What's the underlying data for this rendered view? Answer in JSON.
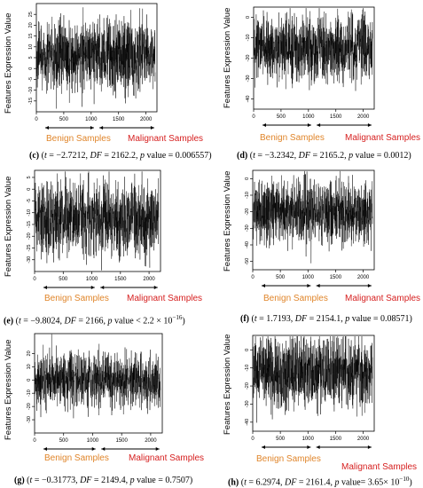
{
  "colors": {
    "benign": "#E0852A",
    "malignant": "#D62020",
    "series": "#000000"
  },
  "panels": [
    {
      "id": "c",
      "caption_letter": "(c)",
      "t": "−2.7212",
      "df": "2162.2",
      "p": "0.006557",
      "p_op": "="
    },
    {
      "id": "d",
      "caption_letter": "(d)",
      "t": "−3.2342",
      "df": "2165.2",
      "p": "0.0012",
      "p_op": "="
    },
    {
      "id": "e",
      "caption_letter": "(e)",
      "t": "−9.8024",
      "df": "2166",
      "p": "2.2 × 10",
      "p_exp": "−16",
      "p_op": "<"
    },
    {
      "id": "f",
      "caption_letter": "(f)",
      "t": "1.7193",
      "df": "2154.1",
      "p": "0.08571",
      "p_op": "="
    },
    {
      "id": "g",
      "caption_letter": "(g)",
      "t": "−0.31773",
      "df": "2149.4",
      "p": "0.7507",
      "p_op": "="
    },
    {
      "id": "h",
      "caption_letter": "(h)",
      "t": "6.2974",
      "df": "2161.4",
      "p": "3.65× 10",
      "p_exp": "−10",
      "p_op": "="
    }
  ],
  "labels": {
    "y_axis": "Features Expression Value",
    "benign": "Benign Samples",
    "malignant": "Malignant Samples",
    "t_sym": "t",
    "df_sym": "DF",
    "p_sym": "p",
    "p_word": "value"
  },
  "chart_data": [
    {
      "panel": "c",
      "type": "line",
      "n_points": 2168,
      "x_ticks": [
        0,
        500,
        1000,
        1500,
        2000
      ],
      "y_ticks": [
        -15,
        -10,
        -5,
        0,
        5,
        10,
        15,
        20,
        25
      ],
      "ylim": [
        -20,
        30
      ],
      "center": 6,
      "spread": 8
    },
    {
      "panel": "d",
      "type": "line",
      "n_points": 2168,
      "x_ticks": [
        0,
        500,
        1000,
        1500,
        2000
      ],
      "y_ticks": [
        -40,
        -30,
        -20,
        -10,
        0
      ],
      "ylim": [
        -45,
        5
      ],
      "center": -15,
      "spread": 8
    },
    {
      "panel": "e",
      "type": "line",
      "n_points": 2168,
      "x_ticks": [
        0,
        500,
        1000,
        1500,
        2000
      ],
      "y_ticks": [
        -30,
        -25,
        -20,
        -15,
        -10,
        -5,
        0,
        5
      ],
      "ylim": [
        -35,
        8
      ],
      "center": -13,
      "spread": 8
    },
    {
      "panel": "f",
      "type": "line",
      "n_points": 2168,
      "x_ticks": [
        0,
        500,
        1000,
        1500,
        2000
      ],
      "y_ticks": [
        -50,
        -40,
        -30,
        -20,
        -10,
        0
      ],
      "ylim": [
        -55,
        5
      ],
      "center": -20,
      "spread": 9
    },
    {
      "panel": "g",
      "type": "line",
      "n_points": 2168,
      "x_ticks": [
        0,
        500,
        1000,
        1500,
        2000
      ],
      "y_ticks": [
        -30,
        -20,
        -10,
        0,
        10,
        20
      ],
      "ylim": [
        -40,
        35
      ],
      "center": 0,
      "spread": 10
    },
    {
      "panel": "h",
      "type": "line",
      "n_points": 2168,
      "x_ticks": [
        0,
        500,
        1000,
        1500,
        2000
      ],
      "y_ticks": [
        -40,
        -30,
        -20,
        -10,
        0
      ],
      "ylim": [
        -45,
        8
      ],
      "center": -12,
      "spread": 10
    }
  ]
}
